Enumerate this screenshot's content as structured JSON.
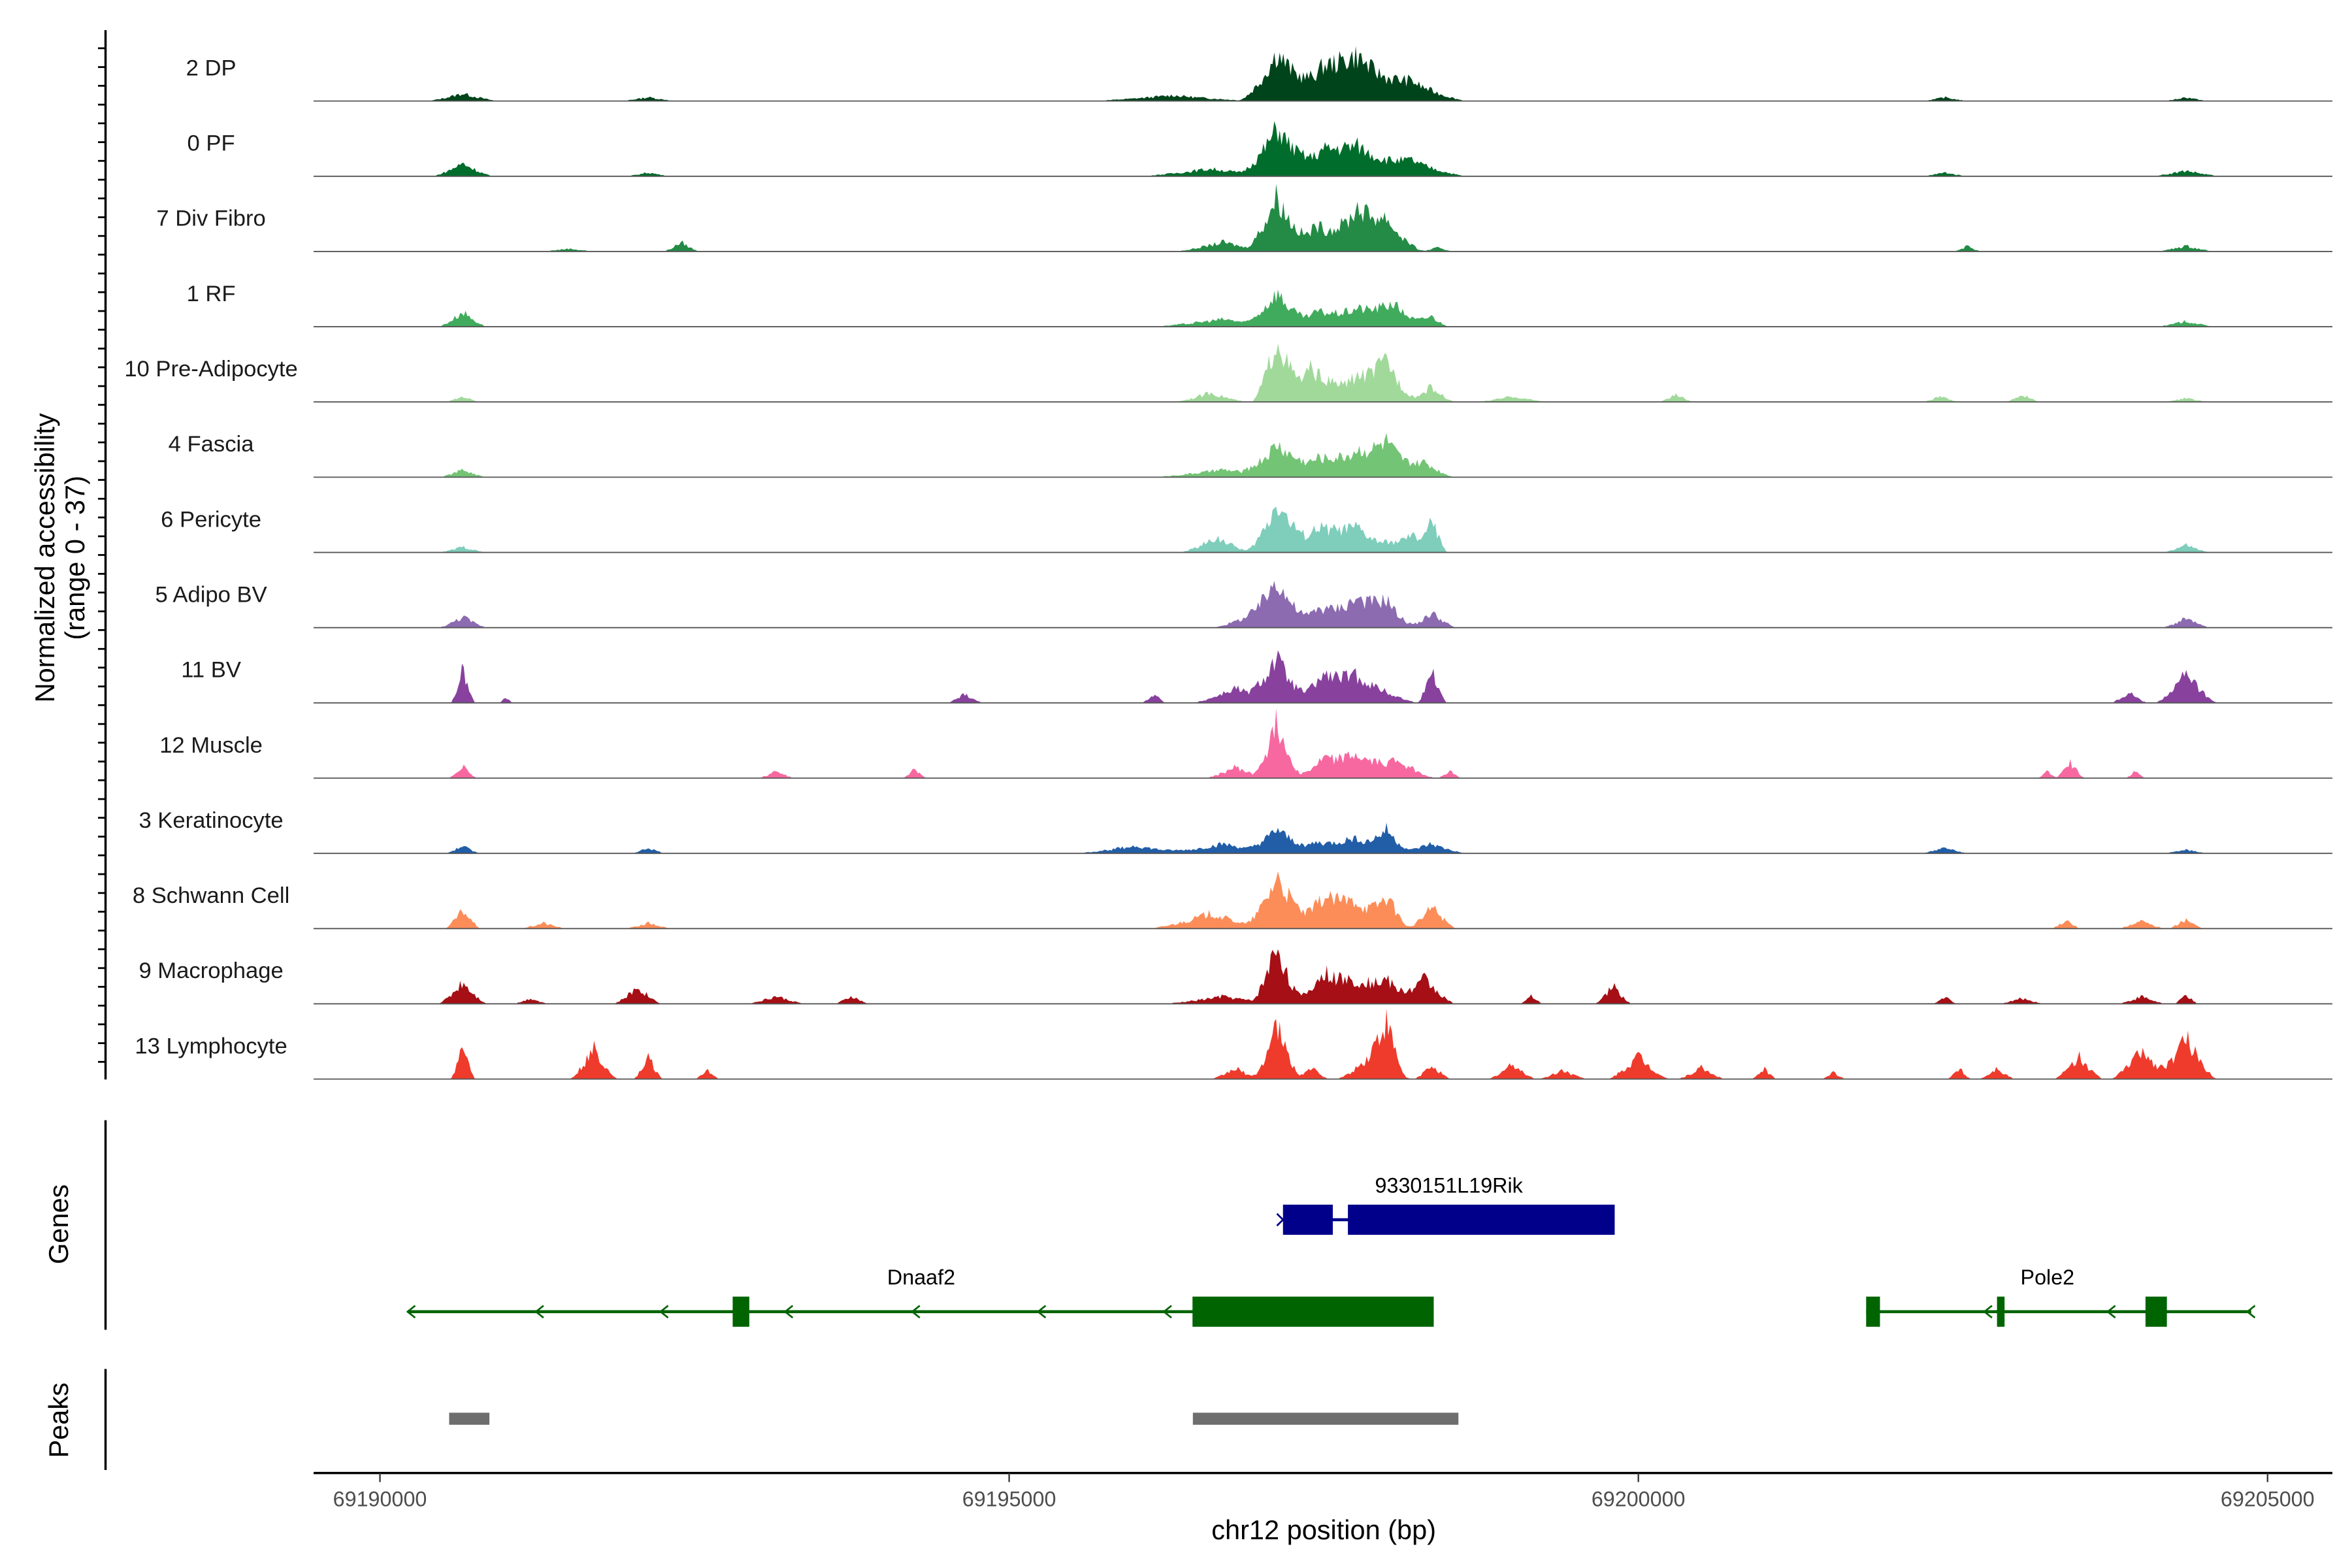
{
  "chart_data": {
    "type": "area",
    "title": "",
    "xlabel": "chr12 position (bp)",
    "ylabel": "Normalized accessibility",
    "ylabel_range": "(range 0 - 37)",
    "ylim": [
      0,
      37
    ],
    "xlim": [
      69189530,
      69205520
    ],
    "x_ticks": [
      69190000,
      69195000,
      69200000,
      69205000
    ],
    "x_tick_labels": [
      "69190000",
      "69195000",
      "69200000",
      "69205000"
    ],
    "tracks": [
      {
        "name": "2 DP",
        "color": "#00441b",
        "peaks": [
          [
            69190659,
            300,
            4
          ],
          [
            69192133,
            250,
            2
          ],
          [
            69196300,
            700,
            3
          ],
          [
            69197128,
            300,
            24
          ],
          [
            69197500,
            500,
            12
          ],
          [
            69197763,
            500,
            20
          ],
          [
            69198200,
            450,
            10
          ],
          [
            69202435,
            200,
            2
          ],
          [
            69204352,
            200,
            2
          ]
        ]
      },
      {
        "name": "0 PF",
        "color": "#006d2c",
        "peaks": [
          [
            69190659,
            250,
            7
          ],
          [
            69192133,
            200,
            2
          ],
          [
            69196600,
            600,
            4
          ],
          [
            69197128,
            300,
            24
          ],
          [
            69197500,
            500,
            10
          ],
          [
            69197763,
            500,
            13
          ],
          [
            69198200,
            450,
            8
          ],
          [
            69202435,
            200,
            2
          ],
          [
            69204352,
            300,
            3
          ]
        ]
      },
      {
        "name": "7 Div Fibro",
        "color": "#238b45",
        "peaks": [
          [
            69192396,
            150,
            5
          ],
          [
            69191500,
            250,
            1.5
          ],
          [
            69196700,
            400,
            5
          ],
          [
            69197128,
            250,
            30
          ],
          [
            69197450,
            300,
            14
          ],
          [
            69197763,
            300,
            22
          ],
          [
            69198000,
            300,
            16
          ],
          [
            69198400,
            150,
            2
          ],
          [
            69202615,
            120,
            3
          ],
          [
            69204352,
            250,
            3
          ]
        ]
      },
      {
        "name": "1 RF",
        "color": "#41ab5d",
        "peaks": [
          [
            69190659,
            200,
            8
          ],
          [
            69196700,
            600,
            4
          ],
          [
            69197128,
            250,
            18
          ],
          [
            69197450,
            300,
            8
          ],
          [
            69197763,
            350,
            10
          ],
          [
            69198050,
            300,
            12
          ],
          [
            69198350,
            150,
            6
          ],
          [
            69204352,
            250,
            3
          ]
        ]
      },
      {
        "name": "10 Pre-Adipocyte",
        "color": "#a1d99b",
        "peaks": [
          [
            69190659,
            150,
            3
          ],
          [
            69196600,
            300,
            5
          ],
          [
            69197128,
            200,
            34
          ],
          [
            69197400,
            300,
            18
          ],
          [
            69197763,
            350,
            14
          ],
          [
            69198003,
            250,
            20
          ],
          [
            69198350,
            200,
            8
          ],
          [
            69199000,
            300,
            3
          ],
          [
            69200300,
            150,
            4
          ],
          [
            69202400,
            150,
            3
          ],
          [
            69203050,
            150,
            4
          ],
          [
            69204352,
            200,
            2
          ]
        ]
      },
      {
        "name": "4 Fascia",
        "color": "#74c476",
        "peaks": [
          [
            69190659,
            200,
            4
          ],
          [
            69196700,
            600,
            4
          ],
          [
            69197128,
            300,
            16
          ],
          [
            69197450,
            400,
            9
          ],
          [
            69197763,
            400,
            12
          ],
          [
            69198003,
            300,
            16
          ],
          [
            69198300,
            250,
            8
          ]
        ]
      },
      {
        "name": "6 Pericyte",
        "color": "#7fcdbb",
        "peaks": [
          [
            69190659,
            200,
            3
          ],
          [
            69196650,
            300,
            8
          ],
          [
            69197128,
            250,
            26
          ],
          [
            69197450,
            400,
            12
          ],
          [
            69197763,
            400,
            12
          ],
          [
            69198200,
            300,
            9
          ],
          [
            69198362,
            120,
            14
          ],
          [
            69204352,
            200,
            4
          ]
        ]
      },
      {
        "name": "5 Adipo BV",
        "color": "#8c6bb1",
        "peaks": [
          [
            69190659,
            200,
            6
          ],
          [
            69196900,
            300,
            6
          ],
          [
            69197128,
            250,
            26
          ],
          [
            69197450,
            300,
            10
          ],
          [
            69197763,
            350,
            16
          ],
          [
            69198003,
            250,
            12
          ],
          [
            69198362,
            200,
            8
          ],
          [
            69204352,
            200,
            5
          ]
        ]
      },
      {
        "name": "11 BV",
        "color": "#88419d",
        "peaks": [
          [
            69190659,
            100,
            18
          ],
          [
            69191000,
            60,
            3
          ],
          [
            69194650,
            150,
            5
          ],
          [
            69196150,
            100,
            5
          ],
          [
            69196800,
            350,
            8
          ],
          [
            69197128,
            250,
            24
          ],
          [
            69197500,
            300,
            10
          ],
          [
            69197763,
            500,
            14
          ],
          [
            69198362,
            120,
            18
          ],
          [
            69203900,
            150,
            6
          ],
          [
            69204352,
            250,
            16
          ]
        ]
      },
      {
        "name": "12 Muscle",
        "color": "#f768a1",
        "peaks": [
          [
            69190659,
            120,
            7
          ],
          [
            69193150,
            150,
            4
          ],
          [
            69194250,
            100,
            5
          ],
          [
            69196800,
            250,
            6
          ],
          [
            69197128,
            200,
            30
          ],
          [
            69197500,
            300,
            8
          ],
          [
            69197763,
            400,
            12
          ],
          [
            69198100,
            300,
            9
          ],
          [
            69198500,
            100,
            4
          ],
          [
            69203430,
            120,
            9
          ],
          [
            69203250,
            80,
            4
          ],
          [
            69203950,
            80,
            4
          ]
        ]
      },
      {
        "name": "3 Keratinocyte",
        "color": "#225ea8",
        "peaks": [
          [
            69190659,
            150,
            4
          ],
          [
            69192133,
            150,
            3
          ],
          [
            69196000,
            500,
            4
          ],
          [
            69196700,
            500,
            5
          ],
          [
            69197128,
            250,
            12
          ],
          [
            69197450,
            400,
            6
          ],
          [
            69197763,
            300,
            8
          ],
          [
            69198003,
            200,
            12
          ],
          [
            69198350,
            300,
            5
          ],
          [
            69202435,
            200,
            3
          ],
          [
            69204352,
            200,
            2
          ]
        ]
      },
      {
        "name": "8 Schwann Cell",
        "color": "#fc8d59",
        "peaks": [
          [
            69190659,
            150,
            10
          ],
          [
            69191300,
            200,
            3
          ],
          [
            69192133,
            200,
            3
          ],
          [
            69196600,
            500,
            8
          ],
          [
            69197128,
            250,
            28
          ],
          [
            69197500,
            400,
            14
          ],
          [
            69197763,
            400,
            12
          ],
          [
            69198003,
            200,
            14
          ],
          [
            69198362,
            200,
            12
          ],
          [
            69203400,
            120,
            5
          ],
          [
            69204000,
            200,
            4
          ],
          [
            69204352,
            150,
            5
          ]
        ]
      },
      {
        "name": "9 Macrophage",
        "color": "#a50f15",
        "peaks": [
          [
            69190659,
            200,
            12
          ],
          [
            69191200,
            150,
            3
          ],
          [
            69192050,
            200,
            9
          ],
          [
            69193150,
            250,
            4
          ],
          [
            69193750,
            150,
            4
          ],
          [
            69196700,
            500,
            4
          ],
          [
            69197128,
            200,
            32
          ],
          [
            69197500,
            300,
            14
          ],
          [
            69197763,
            400,
            12
          ],
          [
            69198003,
            250,
            10
          ],
          [
            69198300,
            250,
            14
          ],
          [
            69199150,
            100,
            4
          ],
          [
            69199800,
            150,
            10
          ],
          [
            69202435,
            100,
            4
          ],
          [
            69203050,
            200,
            3
          ],
          [
            69204000,
            200,
            4
          ],
          [
            69204352,
            100,
            5
          ]
        ]
      },
      {
        "name": "13 Lymphocyte",
        "color": "#ef3b2c",
        "peaks": [
          [
            69190659,
            100,
            20
          ],
          [
            69191700,
            200,
            16
          ],
          [
            69192133,
            120,
            12
          ],
          [
            69192600,
            100,
            5
          ],
          [
            69196800,
            200,
            6
          ],
          [
            69197128,
            200,
            28
          ],
          [
            69197400,
            150,
            6
          ],
          [
            69197900,
            300,
            14
          ],
          [
            69198003,
            150,
            22
          ],
          [
            69198362,
            150,
            8
          ],
          [
            69199000,
            200,
            8
          ],
          [
            69199400,
            200,
            5
          ],
          [
            69200000,
            250,
            12
          ],
          [
            69200500,
            200,
            6
          ],
          [
            69201000,
            100,
            6
          ],
          [
            69201550,
            100,
            4
          ],
          [
            69202550,
            100,
            6
          ],
          [
            69202850,
            150,
            6
          ],
          [
            69203500,
            200,
            12
          ],
          [
            69204000,
            250,
            16
          ],
          [
            69204352,
            250,
            22
          ]
        ]
      }
    ],
    "genes": [
      {
        "name": "9330151L19Rik",
        "strand": "+",
        "color": "#00008b",
        "start": 69197176,
        "end": 69199812,
        "exons": [
          [
            69197176,
            69197572
          ],
          [
            69197692,
            69199812
          ]
        ],
        "row": 0,
        "arrows": []
      },
      {
        "name": "Dnaaf2",
        "strand": "-",
        "color": "#006400",
        "start": 69190220,
        "end": 69198374,
        "exons": [
          [
            69192803,
            69192935
          ],
          [
            69196457,
            69198374
          ]
        ],
        "row": 1,
        "arrows": [
          69190220,
          69191240,
          69192230,
          69193220,
          69194230,
          69195230,
          69196230
        ]
      },
      {
        "name": "Pole2",
        "strand": "-",
        "color": "#006400",
        "start": 69201810,
        "end": 69204870,
        "exons": [
          [
            69201810,
            69201920
          ],
          [
            69202850,
            69202910
          ],
          [
            69204030,
            69204200
          ]
        ],
        "row": 1,
        "arrows": [
          69202750,
          69203730,
          69204840
        ]
      }
    ],
    "peaks": [
      [
        69190550,
        69190870
      ],
      [
        69196460,
        69198570
      ]
    ],
    "panel_labels": {
      "genes": "Genes",
      "peaks": "Peaks"
    }
  }
}
